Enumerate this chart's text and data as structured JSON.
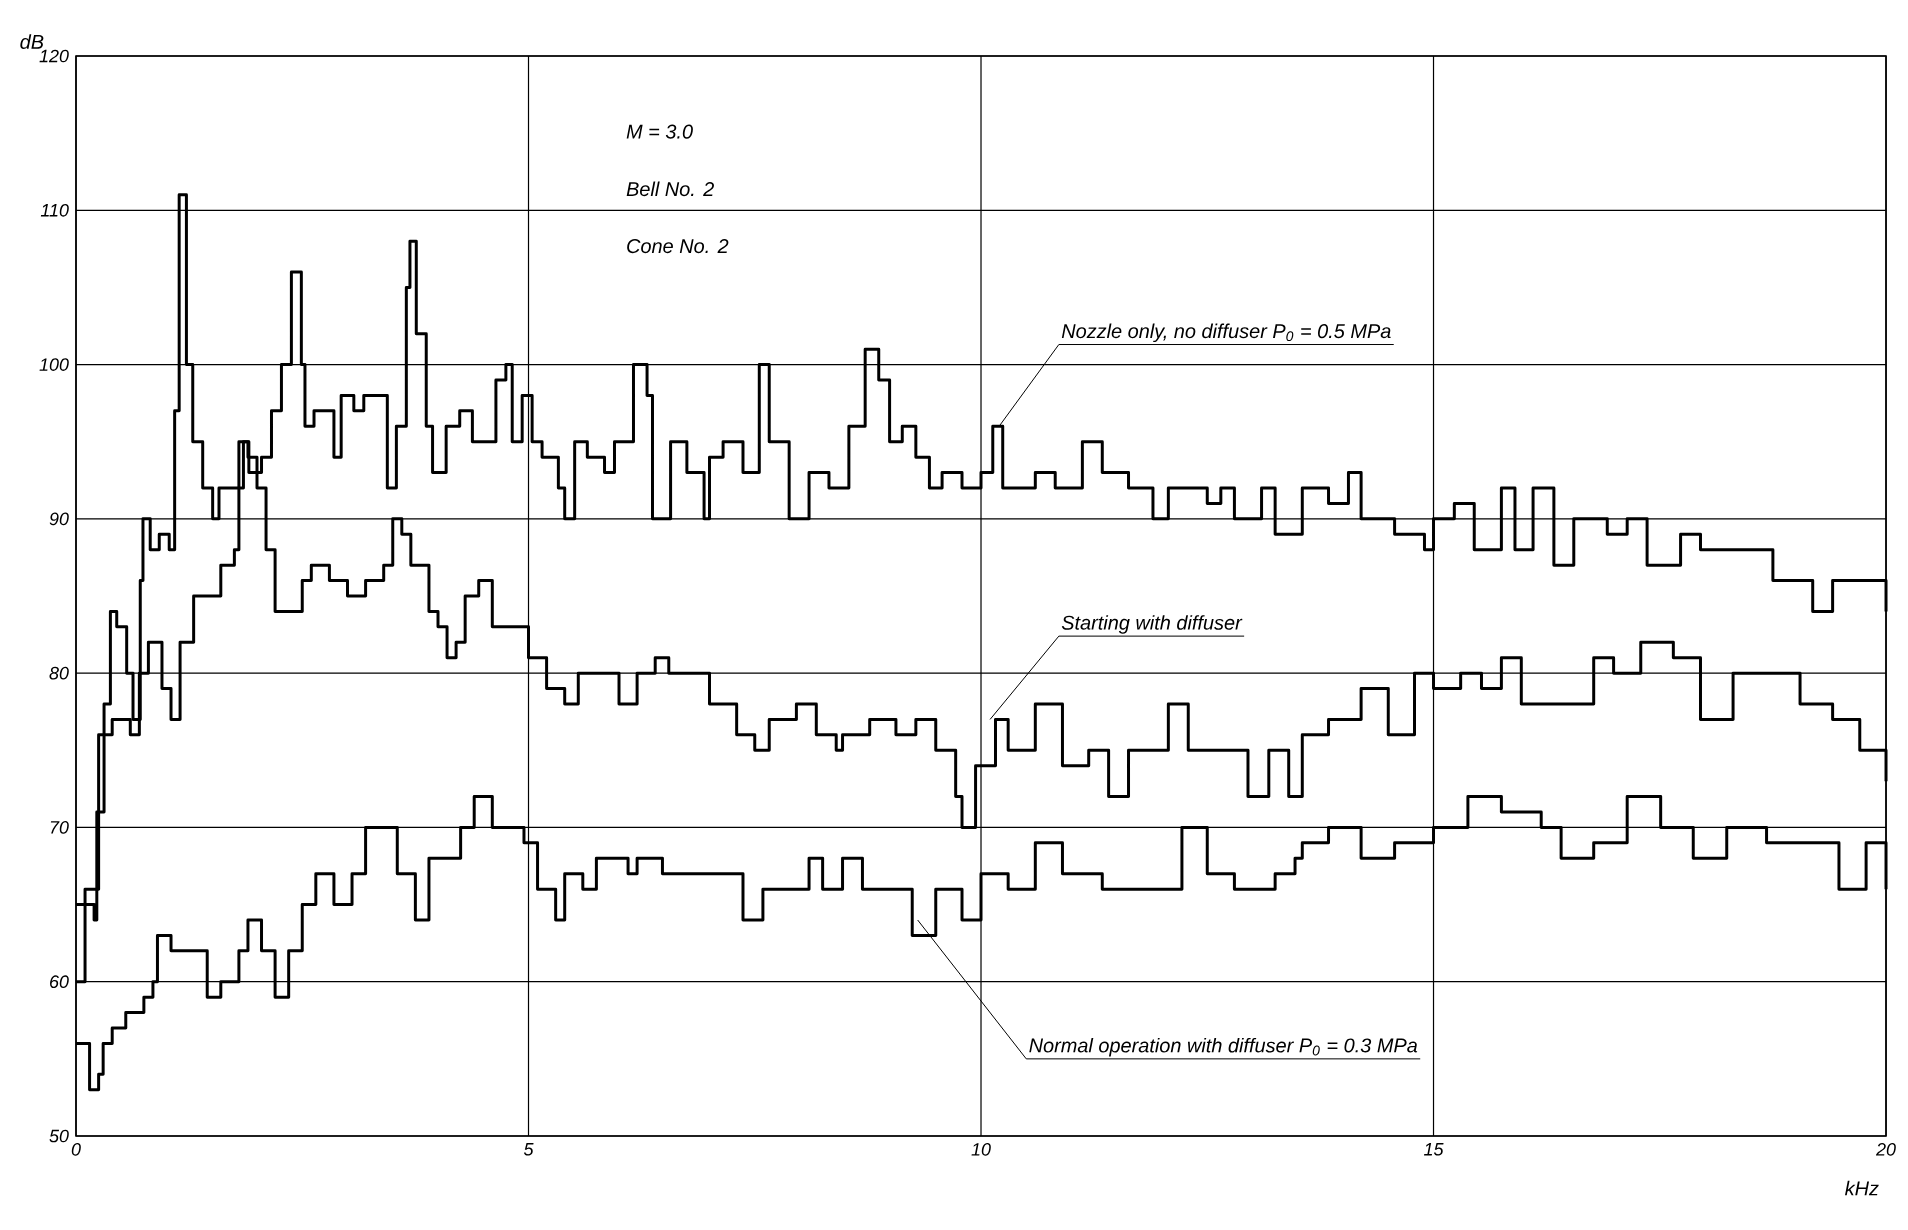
{
  "chart_data": {
    "type": "step",
    "xlabel": "kHz",
    "ylabel": "dB",
    "xlim": [
      0,
      20
    ],
    "ylim": [
      50,
      120
    ],
    "xticks": [
      0,
      5,
      10,
      15,
      20
    ],
    "yticks": [
      50,
      60,
      70,
      80,
      90,
      100,
      110,
      120
    ],
    "grid": true,
    "line_style": "solid",
    "marker": "none",
    "series": [
      {
        "color": "#000000",
        "x": [
          0,
          0.2,
          0.23,
          0.31,
          0.38,
          0.45,
          0.56,
          0.63,
          0.71,
          0.74,
          0.82,
          0.92,
          1.03,
          1.09,
          1.14,
          1.22,
          1.29,
          1.4,
          1.51,
          1.58,
          1.8,
          1.91,
          2.05,
          2.16,
          2.27,
          2.38,
          2.49,
          2.53,
          2.63,
          2.85,
          2.93,
          3.07,
          3.18,
          3.44,
          3.54,
          3.65,
          3.69,
          3.76,
          3.87,
          3.94,
          4.09,
          4.24,
          4.38,
          4.64,
          4.75,
          4.82,
          4.93,
          5.04,
          5.15,
          5.33,
          5.4,
          5.51,
          5.65,
          5.84,
          5.95,
          6.16,
          6.31,
          6.37,
          6.57,
          6.75,
          6.94,
          7.0,
          7.15,
          7.37,
          7.55,
          7.66,
          7.88,
          8.1,
          8.32,
          8.54,
          8.72,
          8.87,
          8.99,
          9.13,
          9.28,
          9.43,
          9.57,
          9.79,
          10.0,
          10.13,
          10.24,
          10.6,
          10.82,
          11.12,
          11.34,
          11.63,
          11.9,
          12.07,
          12.5,
          12.65,
          12.8,
          13.1,
          13.25,
          13.55,
          13.84,
          14.06,
          14.2,
          14.57,
          14.9,
          15.0,
          15.23,
          15.45,
          15.75,
          15.9,
          16.1,
          16.33,
          16.55,
          16.92,
          17.14,
          17.36,
          17.73,
          17.95,
          18.24,
          18.53,
          18.75,
          19.19,
          19.41,
          19.71,
          20.0
        ],
        "values": [
          65,
          64,
          71,
          78,
          84,
          83,
          80,
          77,
          86,
          90,
          88,
          89,
          88,
          97,
          111,
          100,
          95,
          92,
          90,
          92,
          95,
          93,
          94,
          97,
          100,
          106,
          100,
          96,
          97,
          94,
          98,
          97,
          98,
          92,
          96,
          105,
          108,
          102,
          96,
          93,
          96,
          97,
          95,
          99,
          100,
          95,
          98,
          95,
          94,
          92,
          90,
          95,
          94,
          93,
          95,
          100,
          98,
          90,
          95,
          93,
          90,
          94,
          95,
          93,
          100,
          95,
          90,
          93,
          92,
          96,
          101,
          99,
          95,
          96,
          94,
          92,
          93,
          92,
          93,
          96,
          92,
          93,
          92,
          95,
          93,
          92,
          90,
          92,
          91,
          92,
          90,
          92,
          89,
          92,
          91,
          93,
          90,
          89,
          88,
          90,
          91,
          88,
          92,
          88,
          92,
          87,
          90,
          89,
          90,
          87,
          89,
          88,
          88,
          88,
          86,
          84,
          86,
          86,
          84
        ]
      },
      {
        "color": "#000000",
        "x": [
          0,
          0.1,
          0.25,
          0.4,
          0.6,
          0.7,
          0.8,
          0.95,
          1.05,
          1.15,
          1.3,
          1.45,
          1.6,
          1.75,
          1.8,
          1.85,
          1.9,
          2.0,
          2.1,
          2.2,
          2.35,
          2.5,
          2.6,
          2.8,
          3.0,
          3.2,
          3.4,
          3.5,
          3.6,
          3.7,
          3.9,
          4.0,
          4.1,
          4.2,
          4.3,
          4.45,
          4.6,
          4.9,
          5.0,
          5.2,
          5.4,
          5.55,
          5.8,
          6.0,
          6.2,
          6.4,
          6.55,
          6.78,
          7.0,
          7.3,
          7.5,
          7.66,
          7.96,
          8.18,
          8.4,
          8.47,
          8.77,
          9.06,
          9.28,
          9.5,
          9.72,
          9.79,
          9.94,
          10.16,
          10.3,
          10.6,
          10.9,
          11.19,
          11.41,
          11.63,
          11.93,
          12.07,
          12.29,
          12.66,
          12.95,
          13.18,
          13.4,
          13.55,
          13.84,
          14.2,
          14.5,
          14.79,
          15.0,
          15.3,
          15.53,
          15.75,
          15.97,
          16.4,
          16.77,
          16.99,
          17.29,
          17.65,
          17.95,
          18.31,
          18.82,
          19.05,
          19.41,
          19.71,
          20.0
        ],
        "values": [
          60,
          66,
          76,
          77,
          76,
          80,
          82,
          79,
          77,
          82,
          85,
          85,
          87,
          88,
          92,
          95,
          94,
          92,
          88,
          84,
          84,
          86,
          87,
          86,
          85,
          86,
          87,
          90,
          89,
          87,
          84,
          83,
          81,
          82,
          85,
          86,
          83,
          83,
          81,
          79,
          78,
          80,
          80,
          78,
          80,
          81,
          80,
          80,
          78,
          76,
          75,
          77,
          78,
          76,
          75,
          76,
          77,
          76,
          77,
          75,
          72,
          70,
          74,
          77,
          75,
          78,
          74,
          75,
          72,
          75,
          75,
          78,
          75,
          75,
          72,
          75,
          72,
          76,
          77,
          79,
          76,
          80,
          79,
          80,
          79,
          81,
          78,
          78,
          81,
          80,
          82,
          81,
          77,
          80,
          80,
          78,
          77,
          75,
          73
        ]
      },
      {
        "color": "#000000",
        "x": [
          0,
          0.15,
          0.25,
          0.3,
          0.4,
          0.55,
          0.75,
          0.85,
          0.9,
          1.05,
          1.3,
          1.45,
          1.6,
          1.8,
          1.9,
          2.05,
          2.2,
          2.35,
          2.5,
          2.65,
          2.85,
          3.05,
          3.2,
          3.55,
          3.75,
          3.9,
          4.25,
          4.4,
          4.6,
          4.95,
          5.1,
          5.3,
          5.4,
          5.6,
          5.75,
          6.1,
          6.2,
          6.48,
          7.15,
          7.37,
          7.59,
          8.1,
          8.25,
          8.47,
          8.69,
          9.24,
          9.5,
          9.79,
          10.0,
          10.3,
          10.6,
          10.9,
          11.34,
          12.22,
          12.5,
          12.8,
          13.25,
          13.47,
          13.55,
          13.84,
          14.2,
          14.57,
          15.0,
          15.38,
          15.75,
          16.19,
          16.41,
          16.77,
          17.14,
          17.51,
          17.87,
          18.24,
          18.68,
          19.19,
          19.48,
          19.78,
          20.0
        ],
        "values": [
          56,
          53,
          54,
          56,
          57,
          58,
          59,
          60,
          63,
          62,
          62,
          59,
          60,
          62,
          64,
          62,
          59,
          62,
          65,
          67,
          65,
          67,
          70,
          67,
          64,
          68,
          70,
          72,
          70,
          69,
          66,
          64,
          67,
          66,
          68,
          67,
          68,
          67,
          67,
          64,
          66,
          68,
          66,
          68,
          66,
          63,
          66,
          64,
          67,
          66,
          69,
          67,
          66,
          70,
          67,
          66,
          67,
          68,
          69,
          70,
          68,
          69,
          70,
          72,
          71,
          70,
          68,
          69,
          72,
          70,
          68,
          70,
          69,
          69,
          66,
          69,
          66
        ]
      }
    ],
    "annotations": [
      {
        "text": "Nozzle only, no diffuser P$_{0}$ = 0.5 MPa",
        "x": 10.2,
        "y": 96
      },
      {
        "text": "Starting with diffuser",
        "x": 10.1,
        "y": 77
      },
      {
        "text": "Normal operation with diffuser P$_{0}$ = 0.3 MPa",
        "x": 9.3,
        "y": 64
      },
      "M = 3.0",
      "Bell No. 2",
      "Cone No. 2"
    ]
  }
}
